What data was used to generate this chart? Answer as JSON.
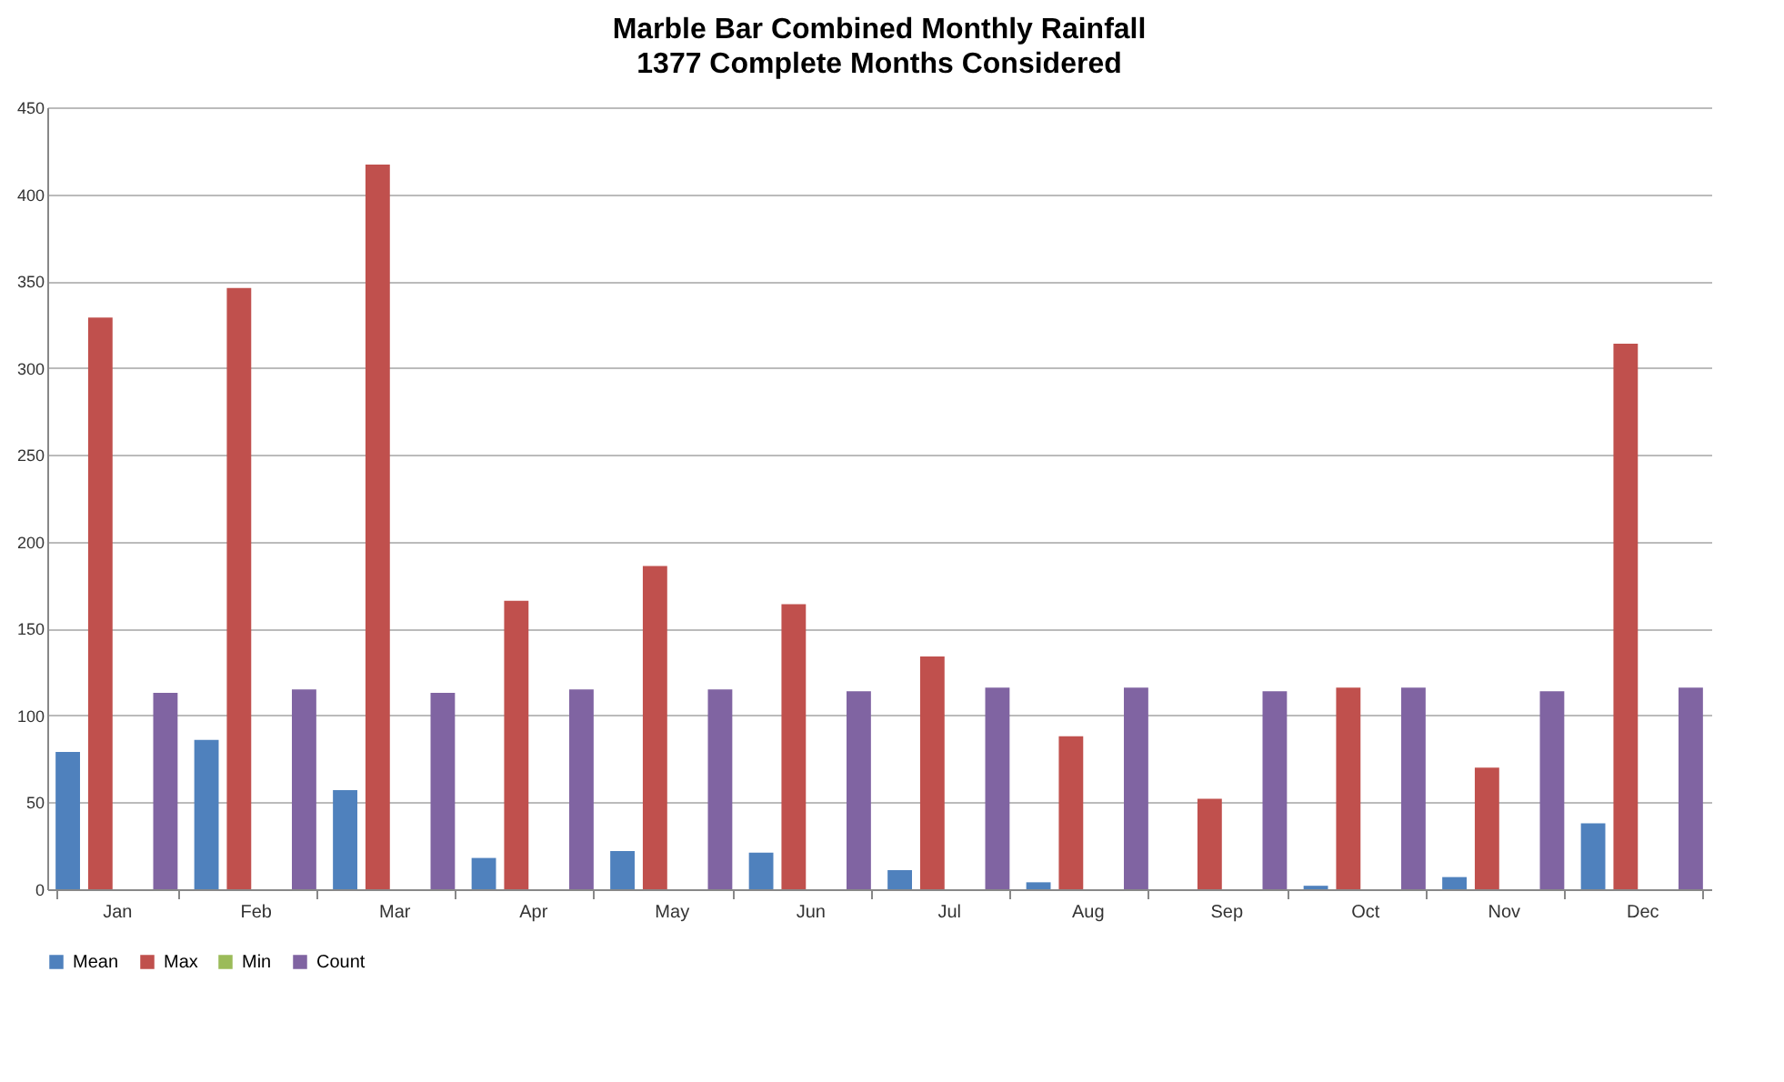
{
  "chart_data": {
    "type": "bar",
    "title": "Marble Bar Combined Monthly Rainfall",
    "subtitle": "1377 Complete Months Considered",
    "categories": [
      "Jan",
      "Feb",
      "Mar",
      "Apr",
      "May",
      "Jun",
      "Jul",
      "Aug",
      "Sep",
      "Oct",
      "Nov",
      "Dec"
    ],
    "series": [
      {
        "name": "Mean",
        "color": "#4f81bd",
        "values": [
          79,
          86,
          57,
          18,
          22,
          21,
          11,
          4,
          0,
          2,
          7,
          38
        ]
      },
      {
        "name": "Max",
        "color": "#c0504d",
        "values": [
          329,
          346,
          417,
          166,
          186,
          164,
          134,
          88,
          52,
          116,
          70,
          314
        ]
      },
      {
        "name": "Min",
        "color": "#9bbb59",
        "values": [
          0,
          0,
          0,
          0,
          0,
          0,
          0,
          0,
          0,
          0,
          0,
          0
        ]
      },
      {
        "name": "Count",
        "color": "#8064a2",
        "values": [
          113,
          115,
          113,
          115,
          115,
          114,
          116,
          116,
          114,
          116,
          114,
          116
        ]
      }
    ],
    "ylim": [
      0,
      450
    ],
    "yticks": [
      0,
      50,
      100,
      150,
      200,
      250,
      300,
      350,
      400,
      450
    ],
    "grid": "y",
    "legend": "bottom"
  }
}
